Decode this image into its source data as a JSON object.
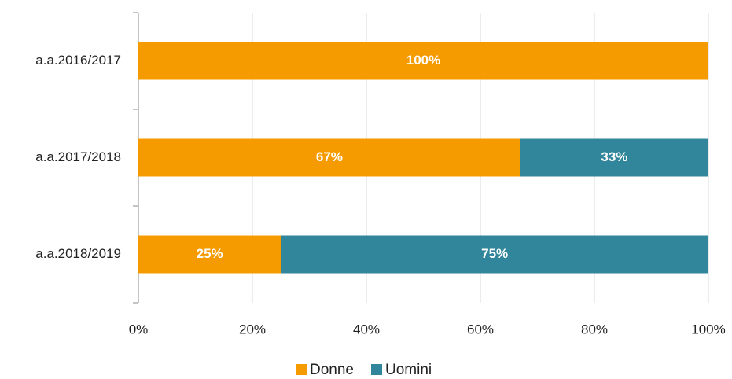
{
  "chart_data": {
    "type": "stacked_barh",
    "categories": [
      "a.a.2016/2017",
      "a.a.2017/2018",
      "a.a.2018/2019"
    ],
    "series": [
      {
        "name": "Donne",
        "color": "#f59b00",
        "values": [
          100,
          67,
          25
        ],
        "value_labels": [
          "100%",
          "67%",
          "25%"
        ]
      },
      {
        "name": "Uomini",
        "color": "#31869b",
        "values": [
          0,
          33,
          75
        ],
        "value_labels": [
          null,
          "33%",
          "75%"
        ]
      }
    ],
    "xlim": [
      0,
      100
    ],
    "xticks": [
      {
        "value": 0,
        "label": "0%"
      },
      {
        "value": 20,
        "label": "20%"
      },
      {
        "value": 40,
        "label": "40%"
      },
      {
        "value": 60,
        "label": "60%"
      },
      {
        "value": 80,
        "label": "80%"
      },
      {
        "value": 100,
        "label": "100%"
      }
    ],
    "grid": true,
    "legend": "bottom"
  }
}
